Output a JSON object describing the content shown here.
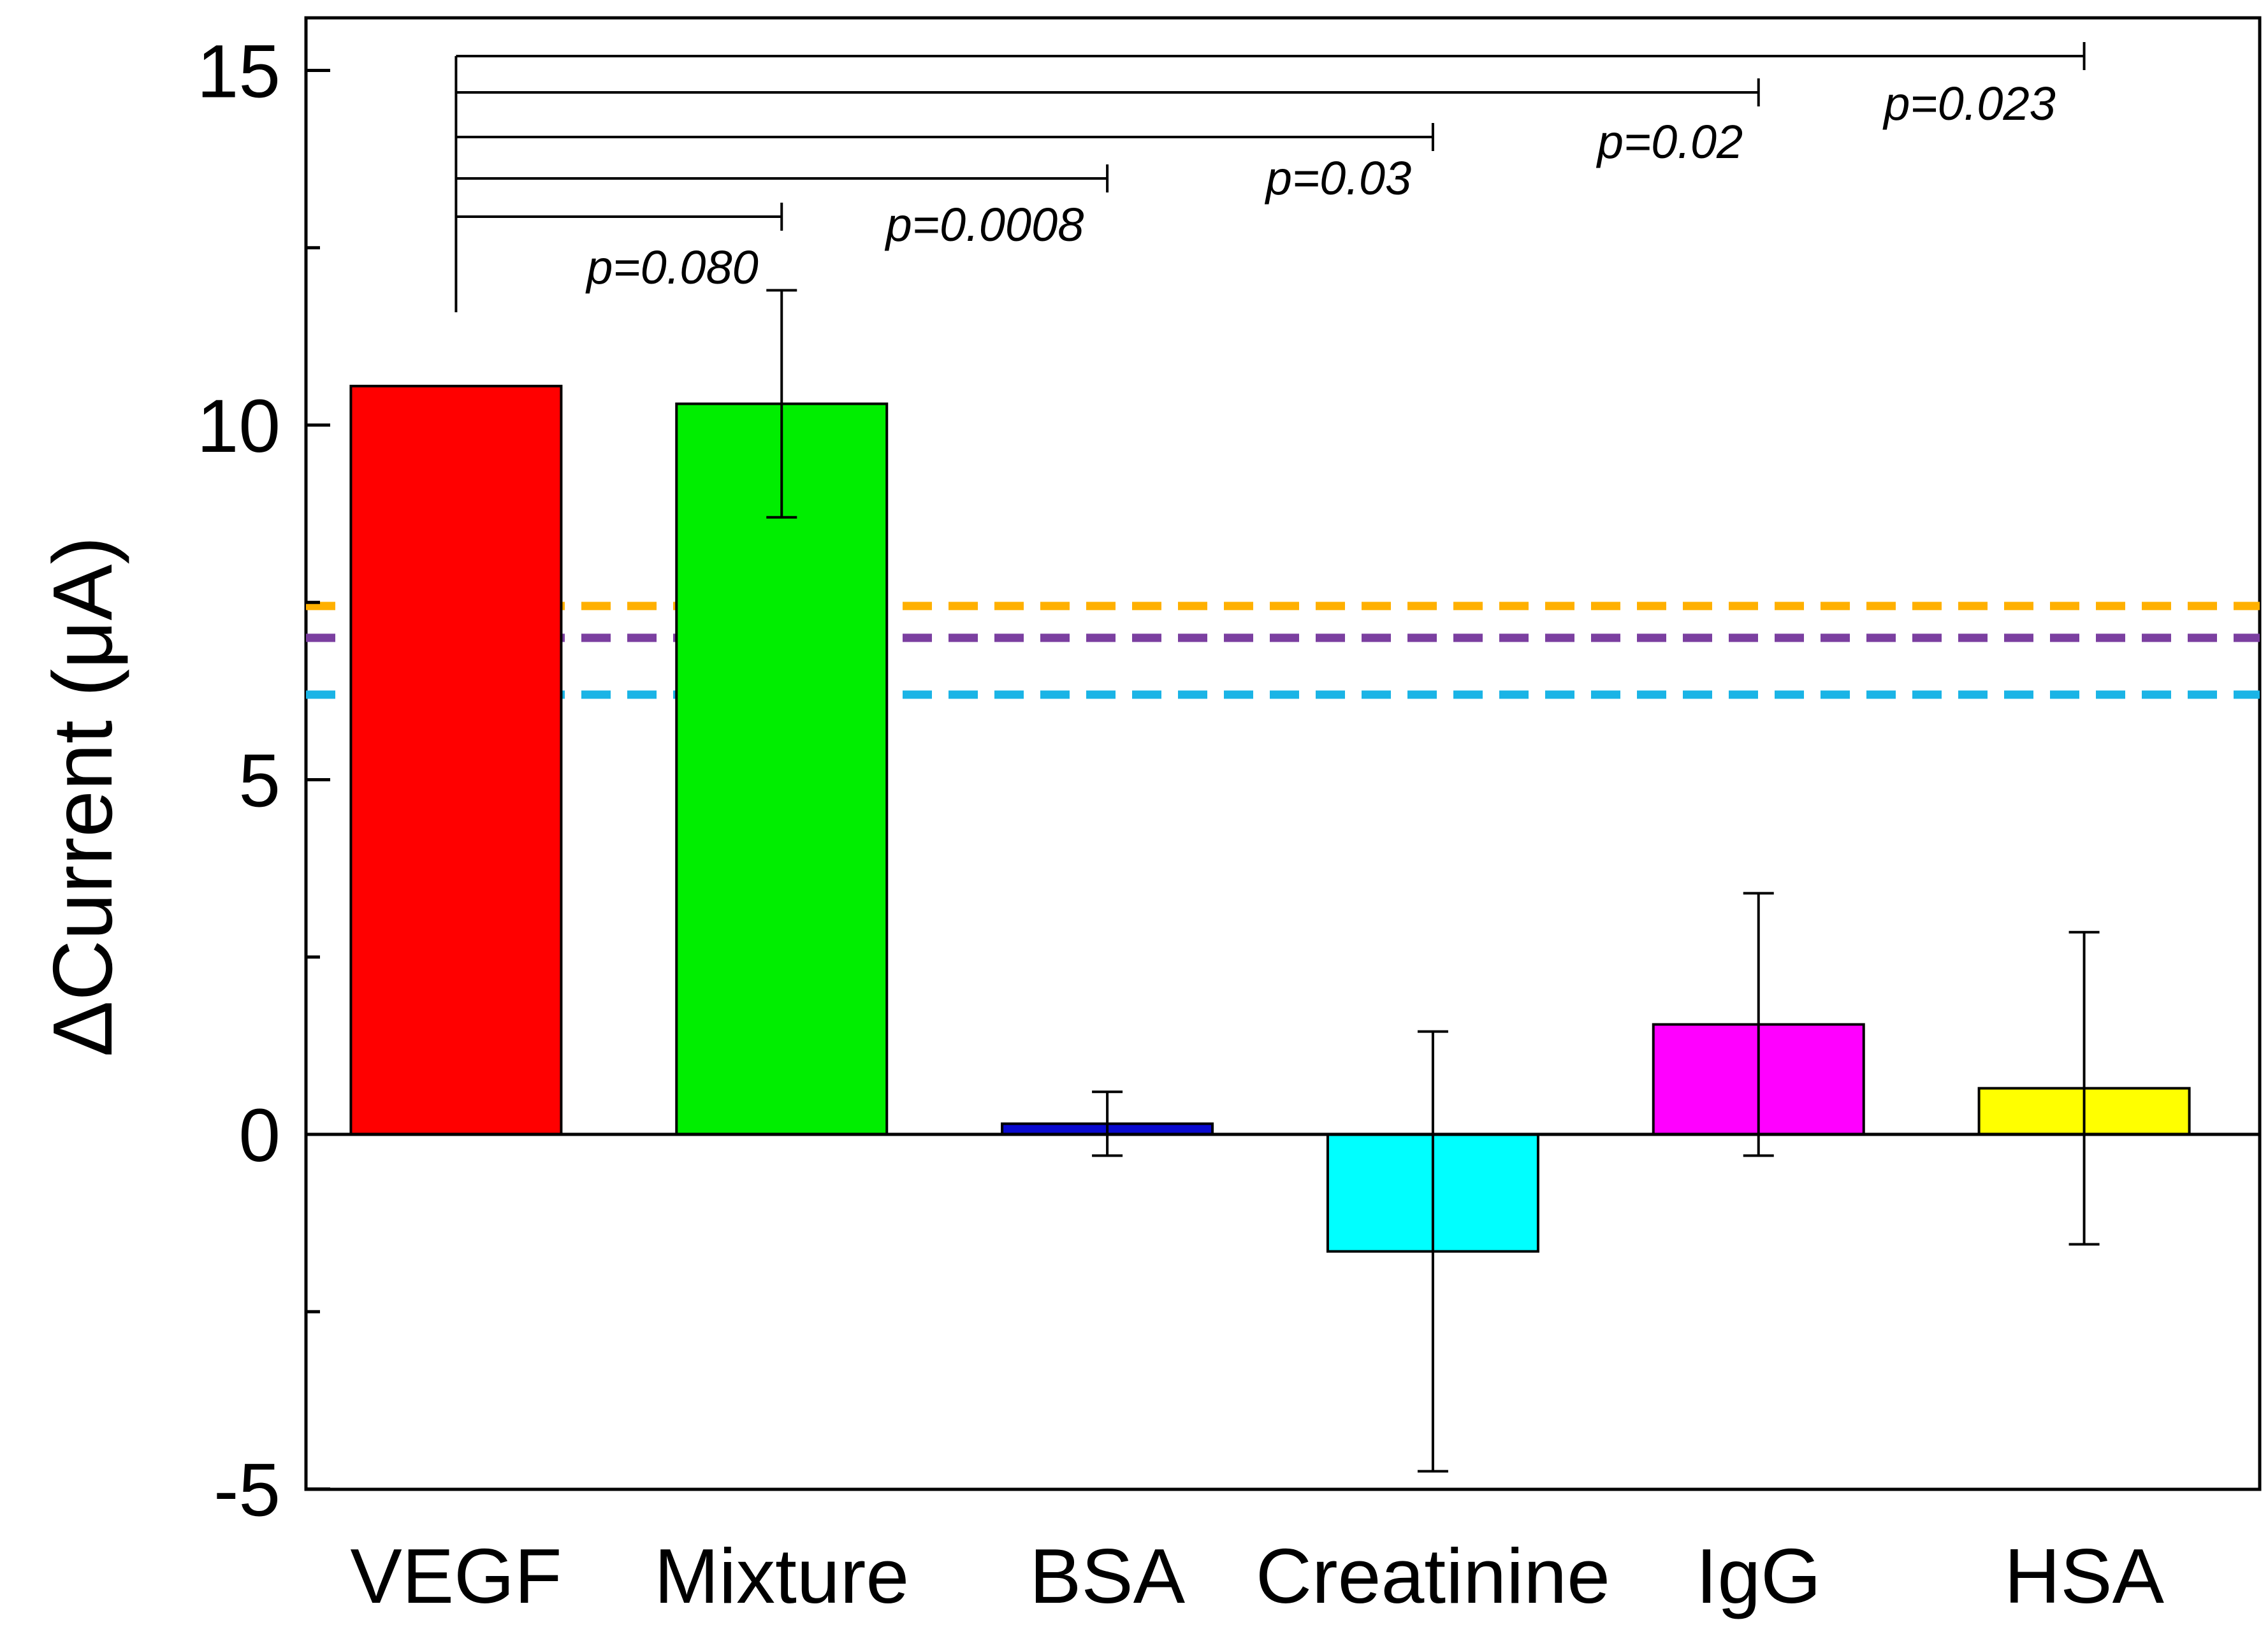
{
  "chart_data": {
    "type": "bar",
    "title": "",
    "xlabel": "",
    "ylabel": "ΔCurrent (μA)",
    "ylim": [
      -5,
      15.5
    ],
    "yticks": [
      -5,
      0,
      5,
      10,
      15
    ],
    "yticks_labels": [
      "-5",
      "0",
      "5",
      "10",
      "15"
    ],
    "categories": [
      "VEGF",
      "Mixture",
      "BSA",
      "Creatinine",
      "IgG",
      "HSA"
    ],
    "values": [
      10.55,
      10.3,
      0.15,
      -1.65,
      1.55,
      0.65
    ],
    "errors": [
      0,
      1.6,
      0.45,
      3.1,
      1.85,
      2.2
    ],
    "colors": [
      "#ff0000",
      "#00ee00",
      "#0a0ad0",
      "#00ffff",
      "#ff00ff",
      "#ffff00"
    ],
    "reference_lines": [
      {
        "value": 7.45,
        "color": "#ffb000",
        "style": "dashed"
      },
      {
        "value": 7.0,
        "color": "#7b3fa0",
        "style": "dashed"
      },
      {
        "value": 6.2,
        "color": "#1ab4e6",
        "style": "dashed"
      }
    ],
    "significance": [
      {
        "from": "VEGF",
        "to": "Mixture",
        "label": "p=0.080"
      },
      {
        "from": "VEGF",
        "to": "BSA",
        "label": "p=0.0008"
      },
      {
        "from": "VEGF",
        "to": "Creatinine",
        "label": "p=0.03"
      },
      {
        "from": "VEGF",
        "to": "IgG",
        "label": "p=0.02"
      },
      {
        "from": "VEGF",
        "to": "HSA",
        "label": "p=0.023"
      }
    ]
  }
}
